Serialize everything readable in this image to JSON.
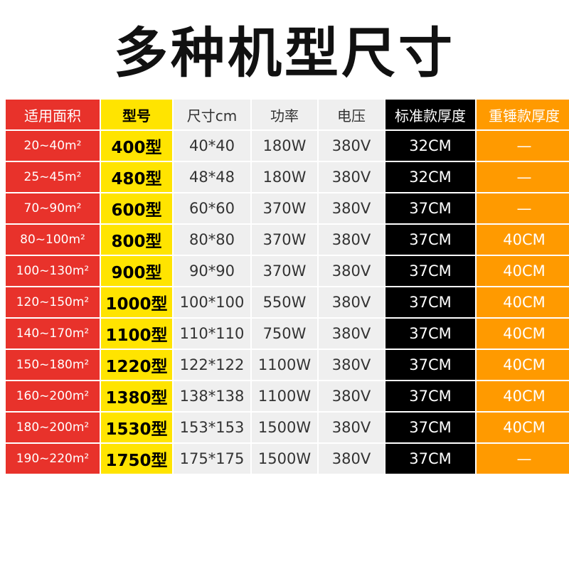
{
  "header": {
    "title": "多种机型尺寸"
  },
  "table": {
    "headers": [
      "适用面积",
      "型号",
      "尺寸cm",
      "功率",
      "电压",
      "标准款厚度",
      "重锤款厚度"
    ],
    "rows": [
      [
        "20~40m²",
        "400型",
        "40*40",
        "180W",
        "380V",
        "32CM",
        "—"
      ],
      [
        "25~45m²",
        "480型",
        "48*48",
        "180W",
        "380V",
        "32CM",
        "—"
      ],
      [
        "70~90m²",
        "600型",
        "60*60",
        "370W",
        "380V",
        "37CM",
        "—"
      ],
      [
        "80~100m²",
        "800型",
        "80*80",
        "370W",
        "380V",
        "37CM",
        "40CM"
      ],
      [
        "100~130m²",
        "900型",
        "90*90",
        "370W",
        "380V",
        "37CM",
        "40CM"
      ],
      [
        "120~150m²",
        "1000型",
        "100*100",
        "550W",
        "380V",
        "37CM",
        "40CM"
      ],
      [
        "140~170m²",
        "1100型",
        "110*110",
        "750W",
        "380V",
        "37CM",
        "40CM"
      ],
      [
        "150~180m²",
        "1220型",
        "122*122",
        "1100W",
        "380V",
        "37CM",
        "40CM"
      ],
      [
        "160~200m²",
        "1380型",
        "138*138",
        "1100W",
        "380V",
        "37CM",
        "40CM"
      ],
      [
        "180~200m²",
        "1530型",
        "153*153",
        "1500W",
        "380V",
        "37CM",
        "40CM"
      ],
      [
        "190~220m²",
        "1750型",
        "175*175",
        "1500W",
        "380V",
        "37CM",
        "—"
      ]
    ]
  }
}
